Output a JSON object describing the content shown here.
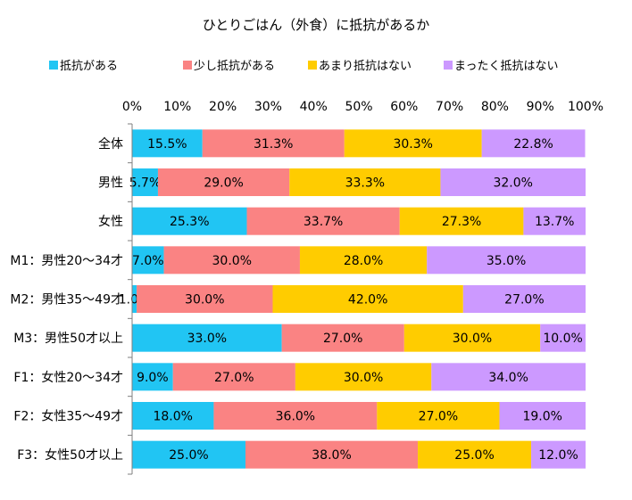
{
  "chart_data": {
    "type": "bar",
    "orientation": "horizontal",
    "stacked": "percent",
    "title": "ひとりごはん（外食）に抵抗があるか",
    "xlim": [
      0,
      100
    ],
    "x_ticks": [
      "0%",
      "10%",
      "20%",
      "30%",
      "40%",
      "50%",
      "60%",
      "70%",
      "80%",
      "90%",
      "100%"
    ],
    "legend_position": "top",
    "grid": false,
    "categories": [
      "全体",
      "男性",
      "女性",
      "M1：男性20～34才",
      "M2：男性35～49才",
      "M3：男性50才以上",
      "F1：女性20～34才",
      "F2：女性35～49才",
      "F3：女性50才以上"
    ],
    "series": [
      {
        "name": "抵抗がある",
        "color": "#21c5f3",
        "values": [
          15.5,
          5.7,
          25.3,
          7.0,
          1.0,
          33.0,
          9.0,
          18.0,
          25.0
        ]
      },
      {
        "name": "少し抵抗がある",
        "color": "#fa8383",
        "values": [
          31.3,
          29.0,
          33.7,
          30.0,
          30.0,
          27.0,
          27.0,
          36.0,
          38.0
        ]
      },
      {
        "name": "あまり抵抗はない",
        "color": "#ffcc00",
        "values": [
          30.3,
          33.3,
          27.3,
          28.0,
          42.0,
          30.0,
          30.0,
          27.0,
          25.0
        ]
      },
      {
        "name": "まったく抵抗はない",
        "color": "#cc99ff",
        "values": [
          22.8,
          32.0,
          13.7,
          35.0,
          27.0,
          10.0,
          34.0,
          19.0,
          12.0
        ]
      }
    ],
    "labels": [
      [
        "15.5%",
        "31.3%",
        "30.3%",
        "22.8%"
      ],
      [
        "5.7%",
        "29.0%",
        "33.3%",
        "32.0%"
      ],
      [
        "25.3%",
        "33.7%",
        "27.3%",
        "13.7%"
      ],
      [
        "7.0%",
        "30.0%",
        "28.0%",
        "35.0%"
      ],
      [
        "1.0%",
        "30.0%",
        "42.0%",
        "27.0%"
      ],
      [
        "33.0%",
        "27.0%",
        "30.0%",
        "10.0%"
      ],
      [
        "9.0%",
        "27.0%",
        "30.0%",
        "34.0%"
      ],
      [
        "18.0%",
        "36.0%",
        "27.0%",
        "19.0%"
      ],
      [
        "25.0%",
        "38.0%",
        "25.0%",
        "12.0%"
      ]
    ]
  }
}
